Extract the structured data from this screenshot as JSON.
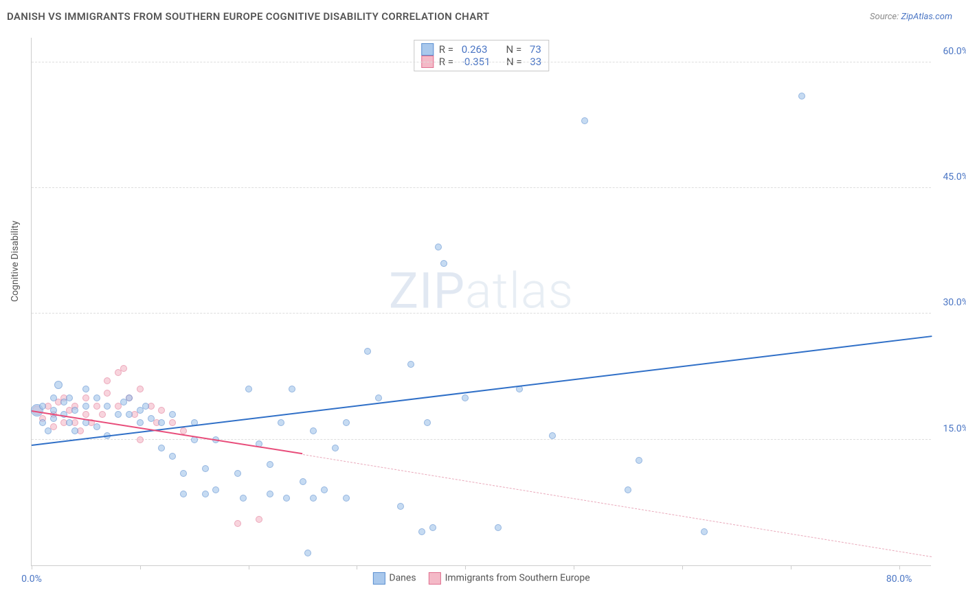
{
  "header": {
    "title": "DANISH VS IMMIGRANTS FROM SOUTHERN EUROPE COGNITIVE DISABILITY CORRELATION CHART",
    "source_prefix": "Source: ",
    "source_link": "ZipAtlas.com"
  },
  "axes": {
    "y_label": "Cognitive Disability",
    "x_min": 0.0,
    "x_max": 83.0,
    "y_min": 0.0,
    "y_max": 63.0,
    "x_ticks": [
      0,
      10,
      20,
      30,
      40,
      50,
      60,
      70,
      80
    ],
    "x_tick_labels": {
      "0": "0.0%",
      "80": "80.0%"
    },
    "y_ticks": [
      15,
      30,
      45,
      60
    ],
    "y_tick_labels": {
      "15": "15.0%",
      "30": "30.0%",
      "45": "45.0%",
      "60": "60.0%"
    },
    "grid_color": "#dddddd",
    "axis_color": "#cccccc",
    "tick_label_color": "#4a75c4"
  },
  "watermark": {
    "bold": "ZIP",
    "light": "atlas"
  },
  "series": {
    "danes": {
      "label": "Danes",
      "marker_fill": "#a9c8ec",
      "marker_stroke": "#5b8fd0",
      "marker_opacity": 0.65,
      "line_color": "#2f6fc7",
      "r_value": "0.263",
      "n_value": "73",
      "regression": {
        "x1": 0,
        "y1": 14.2,
        "x2": 83,
        "y2": 27.2
      },
      "points": [
        [
          0.5,
          18.5,
          18
        ],
        [
          1,
          17,
          10
        ],
        [
          1,
          19,
          10
        ],
        [
          1.5,
          16,
          10
        ],
        [
          2,
          18.5,
          10
        ],
        [
          2,
          20,
          10
        ],
        [
          2,
          17.5,
          10
        ],
        [
          2.5,
          21.5,
          12
        ],
        [
          3,
          19.5,
          10
        ],
        [
          3,
          18,
          10
        ],
        [
          3.5,
          17,
          10
        ],
        [
          3.5,
          20,
          10
        ],
        [
          4,
          18.5,
          10
        ],
        [
          4,
          16,
          10
        ],
        [
          5,
          19,
          10
        ],
        [
          5,
          17,
          10
        ],
        [
          5,
          21,
          10
        ],
        [
          6,
          20,
          10
        ],
        [
          6,
          16.5,
          10
        ],
        [
          7,
          19,
          10
        ],
        [
          7,
          15.5,
          10
        ],
        [
          8,
          18,
          10
        ],
        [
          8.5,
          19.5,
          10
        ],
        [
          9,
          18,
          10
        ],
        [
          9,
          20,
          10
        ],
        [
          10,
          18.5,
          10
        ],
        [
          10,
          17,
          10
        ],
        [
          10.5,
          19,
          10
        ],
        [
          11,
          17.5,
          10
        ],
        [
          12,
          17,
          10
        ],
        [
          12,
          14,
          10
        ],
        [
          13,
          18,
          10
        ],
        [
          13,
          13,
          10
        ],
        [
          14,
          8.5,
          10
        ],
        [
          14,
          11,
          10
        ],
        [
          15,
          15,
          10
        ],
        [
          15,
          17,
          10
        ],
        [
          16,
          11.5,
          10
        ],
        [
          16,
          8.5,
          10
        ],
        [
          17,
          15,
          10
        ],
        [
          17,
          9,
          10
        ],
        [
          19,
          11,
          10
        ],
        [
          19.5,
          8,
          10
        ],
        [
          20,
          21,
          10
        ],
        [
          21,
          14.5,
          10
        ],
        [
          22,
          12,
          10
        ],
        [
          22,
          8.5,
          10
        ],
        [
          23,
          17,
          10
        ],
        [
          23.5,
          8,
          10
        ],
        [
          24,
          21,
          10
        ],
        [
          25,
          10,
          10
        ],
        [
          25.5,
          1.5,
          10
        ],
        [
          26,
          8,
          10
        ],
        [
          26,
          16,
          10
        ],
        [
          27,
          9,
          10
        ],
        [
          28,
          14,
          10
        ],
        [
          29,
          8,
          10
        ],
        [
          29,
          17,
          10
        ],
        [
          31,
          25.5,
          10
        ],
        [
          32,
          20,
          10
        ],
        [
          34,
          7,
          10
        ],
        [
          35,
          24,
          10
        ],
        [
          36,
          4,
          10
        ],
        [
          36.5,
          17,
          10
        ],
        [
          37,
          4.5,
          10
        ],
        [
          37.5,
          38,
          10
        ],
        [
          38,
          36,
          10
        ],
        [
          40,
          20,
          10
        ],
        [
          43,
          4.5,
          10
        ],
        [
          45,
          21,
          10
        ],
        [
          48,
          15.5,
          10
        ],
        [
          51,
          53,
          10
        ],
        [
          55,
          9,
          10
        ],
        [
          56,
          12.5,
          10
        ],
        [
          62,
          4,
          10
        ],
        [
          71,
          56,
          10
        ]
      ]
    },
    "immigrants": {
      "label": "Immigrants from Southern Europe",
      "marker_fill": "#f4b9c7",
      "marker_stroke": "#e06f8f",
      "marker_opacity": 0.6,
      "line_color": "#e84c7a",
      "dash_color": "#e9a8ba",
      "r_value": "-0.351",
      "n_value": "33",
      "regression_solid": {
        "x1": 0,
        "y1": 18.3,
        "x2": 25,
        "y2": 13.2
      },
      "regression_dash": {
        "x1": 25,
        "y1": 13.2,
        "x2": 83,
        "y2": 1.0
      },
      "points": [
        [
          0.5,
          18.5,
          14
        ],
        [
          1,
          17.5,
          10
        ],
        [
          1.5,
          19,
          10
        ],
        [
          2,
          18,
          10
        ],
        [
          2,
          16.5,
          10
        ],
        [
          2.5,
          19.5,
          10
        ],
        [
          3,
          17,
          10
        ],
        [
          3,
          20,
          10
        ],
        [
          3.5,
          18.5,
          10
        ],
        [
          4,
          17,
          10
        ],
        [
          4,
          19,
          10
        ],
        [
          4.5,
          16,
          10
        ],
        [
          5,
          20,
          10
        ],
        [
          5,
          18,
          10
        ],
        [
          5.5,
          17,
          10
        ],
        [
          6,
          19,
          10
        ],
        [
          6.5,
          18,
          10
        ],
        [
          7,
          22,
          10
        ],
        [
          7,
          20.5,
          10
        ],
        [
          8,
          19,
          10
        ],
        [
          8,
          23,
          10
        ],
        [
          8.5,
          23.5,
          10
        ],
        [
          9,
          20,
          10
        ],
        [
          9.5,
          18,
          10
        ],
        [
          10,
          21,
          10
        ],
        [
          10,
          15,
          10
        ],
        [
          11,
          19,
          10
        ],
        [
          11.5,
          17,
          10
        ],
        [
          12,
          18.5,
          10
        ],
        [
          13,
          17,
          10
        ],
        [
          14,
          16,
          10
        ],
        [
          19,
          5,
          10
        ],
        [
          21,
          5.5,
          10
        ]
      ]
    }
  },
  "stats_box": {
    "rows": [
      {
        "swatch_fill": "#a9c8ec",
        "swatch_stroke": "#5b8fd0",
        "r": "0.263",
        "n": "73"
      },
      {
        "swatch_fill": "#f4b9c7",
        "swatch_stroke": "#e06f8f",
        "r": "-0.351",
        "n": "33"
      }
    ],
    "r_label": "R = ",
    "n_label": "N = "
  },
  "bottom_legend": [
    {
      "swatch_fill": "#a9c8ec",
      "swatch_stroke": "#5b8fd0",
      "label": "Danes"
    },
    {
      "swatch_fill": "#f4b9c7",
      "swatch_stroke": "#e06f8f",
      "label": "Immigrants from Southern Europe"
    }
  ]
}
